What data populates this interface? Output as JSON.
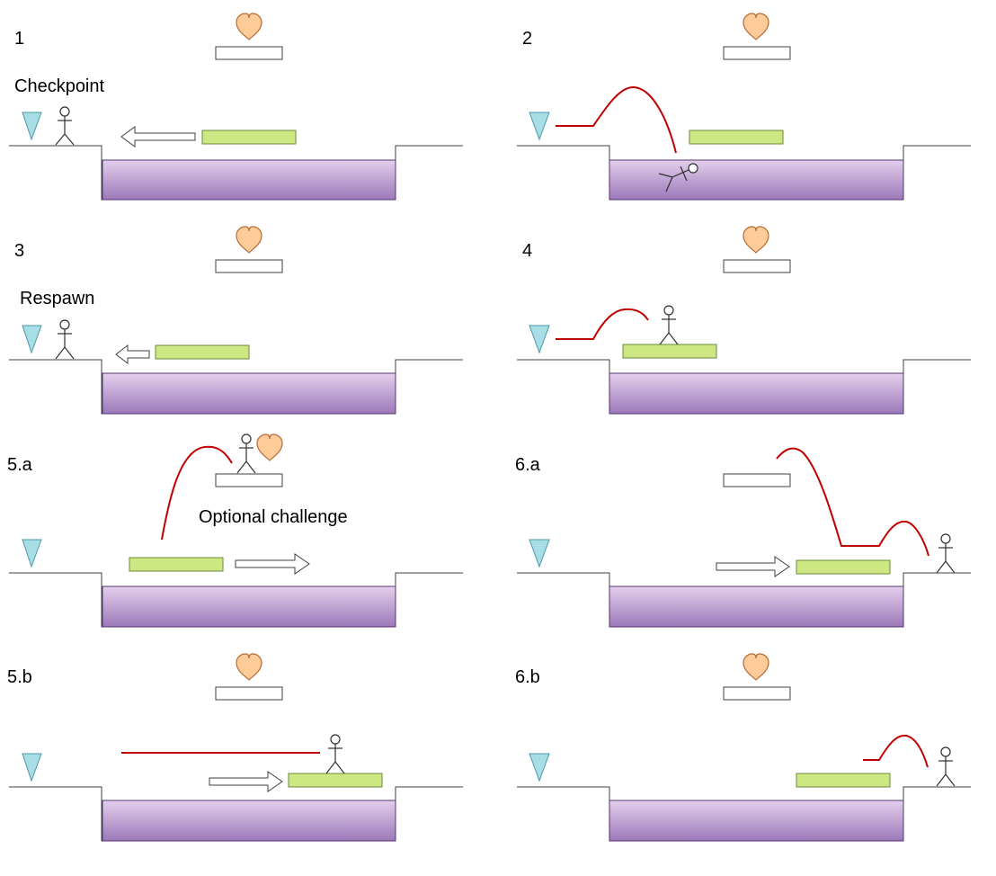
{
  "colors": {
    "water_top": "#e4cfec",
    "water_bottom": "#9b78b9",
    "water_stroke": "#56356f",
    "platform_green": "#cde882",
    "platform_stroke": "#6c8a3e",
    "heart_fill": "#ffcc99",
    "heart_stroke": "#b46b36",
    "checkpoint_fill": "#a8dde6",
    "checkpoint_stroke": "#4a9aa8",
    "trajectory": "#c00000",
    "ground": "#404040"
  },
  "icons": [
    "heart-icon",
    "checkpoint-flag-icon",
    "stick-figure-icon",
    "arrow-left-icon",
    "arrow-right-icon",
    "trajectory-line"
  ],
  "panels": [
    {
      "id": "p1",
      "label": "1",
      "caption": "Checkpoint"
    },
    {
      "id": "p2",
      "label": "2",
      "caption": ""
    },
    {
      "id": "p3",
      "label": "3",
      "caption": "Respawn"
    },
    {
      "id": "p4",
      "label": "4",
      "caption": ""
    },
    {
      "id": "p5a",
      "label": "5.a",
      "caption": "Optional challenge"
    },
    {
      "id": "p6a",
      "label": "6.a",
      "caption": ""
    },
    {
      "id": "p5b",
      "label": "5.b",
      "caption": ""
    },
    {
      "id": "p6b",
      "label": "6.b",
      "caption": ""
    }
  ]
}
